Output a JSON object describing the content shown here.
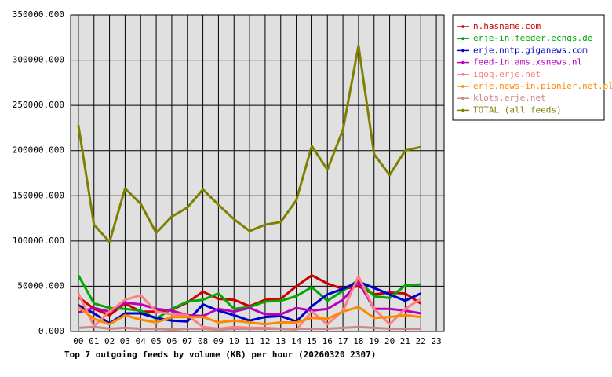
{
  "chart_data": {
    "type": "line",
    "title": "Top 7 outgoing feeds by volume (KB) per hour (20260320 2307)",
    "categories": [
      "00",
      "01",
      "02",
      "03",
      "04",
      "05",
      "06",
      "07",
      "08",
      "09",
      "10",
      "11",
      "12",
      "13",
      "14",
      "15",
      "16",
      "17",
      "18",
      "19",
      "20",
      "21",
      "22",
      "23"
    ],
    "ylim": [
      0,
      350000
    ],
    "yticks": [
      {
        "value": 0,
        "label": "0.000"
      },
      {
        "value": 50000,
        "label": "50000.000"
      },
      {
        "value": 100000,
        "label": "100000.000"
      },
      {
        "value": 150000,
        "label": "150000.000"
      },
      {
        "value": 200000,
        "label": "200000.000"
      },
      {
        "value": 250000,
        "label": "250000.000"
      },
      {
        "value": 300000,
        "label": "300000.000"
      },
      {
        "value": 350000,
        "label": "350000.000"
      }
    ],
    "grid": true,
    "legend": "right",
    "series": [
      {
        "name": "n.hasname.com",
        "color": "#cc0000",
        "values": [
          38000,
          25000,
          18000,
          31000,
          22000,
          22000,
          24000,
          32000,
          44000,
          36000,
          35000,
          28000,
          35000,
          36000,
          50000,
          62000,
          53000,
          47000,
          50000,
          41000,
          43000,
          42000,
          31000,
          null
        ]
      },
      {
        "name": "erje-in.feeder.ecngs.de",
        "color": "#00aa00",
        "values": [
          62000,
          31000,
          26000,
          25000,
          23000,
          14000,
          25000,
          33000,
          35000,
          42000,
          25000,
          27000,
          33000,
          34000,
          39000,
          49000,
          34000,
          45000,
          57000,
          39000,
          37000,
          51000,
          52000,
          null
        ]
      },
      {
        "name": "erje.nntp.giganews.com",
        "color": "#0000cc",
        "values": [
          29000,
          20000,
          9000,
          20000,
          20000,
          15000,
          12000,
          11000,
          30000,
          23000,
          18000,
          12000,
          16000,
          17000,
          11000,
          28000,
          41000,
          47000,
          55000,
          48000,
          41000,
          34000,
          42000,
          null
        ]
      },
      {
        "name": "feed-in.ams.xsnews.nl",
        "color": "#bb00bb",
        "values": [
          21000,
          26000,
          22000,
          32000,
          30000,
          25000,
          23000,
          18000,
          17000,
          25000,
          22000,
          26000,
          19000,
          19000,
          26000,
          23000,
          25000,
          35000,
          55000,
          25000,
          25000,
          23000,
          20000,
          null
        ]
      },
      {
        "name": "iqoq.erje.net",
        "color": "#ff8080",
        "values": [
          42000,
          6000,
          22000,
          35000,
          40000,
          22000,
          19000,
          18000,
          5000,
          3000,
          5000,
          4000,
          4000,
          3000,
          2000,
          22000,
          8000,
          23000,
          61000,
          25000,
          8000,
          25000,
          36000,
          null
        ]
      },
      {
        "name": "erje.news-in.pionier.net.pl",
        "color": "#ff8800",
        "values": [
          27000,
          14000,
          8000,
          18000,
          13000,
          10000,
          16000,
          16000,
          16000,
          10000,
          12000,
          10000,
          8000,
          10000,
          10000,
          15000,
          14000,
          22000,
          27000,
          15000,
          16000,
          18000,
          16000,
          null
        ]
      },
      {
        "name": "klots.erje.net",
        "color": "#cc8888",
        "values": [
          4000,
          5000,
          3000,
          4000,
          3000,
          3000,
          2000,
          3000,
          3000,
          2000,
          3000,
          3000,
          3000,
          3000,
          3000,
          3000,
          3000,
          4000,
          5000,
          4000,
          3000,
          3000,
          3000,
          null
        ]
      },
      {
        "name": "TOTAL (all feeds)",
        "color": "#808000",
        "values": [
          228000,
          118000,
          99000,
          158000,
          141000,
          109000,
          127000,
          137000,
          157000,
          140000,
          124000,
          111000,
          118000,
          121000,
          145000,
          205000,
          179000,
          223000,
          316000,
          196000,
          173000,
          200000,
          204000,
          null
        ]
      }
    ]
  }
}
